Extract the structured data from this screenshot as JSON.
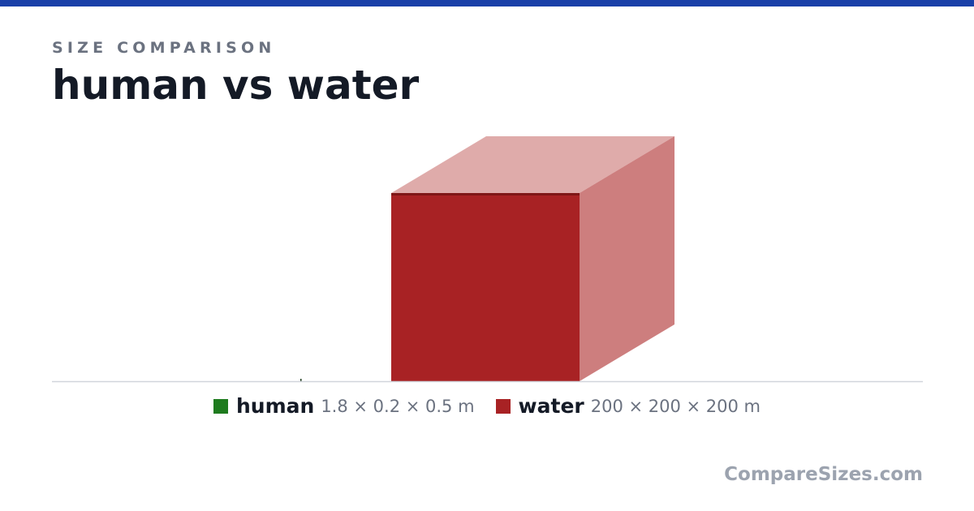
{
  "header": {
    "kicker": "SIZE COMPARISON",
    "title": "human vs water"
  },
  "items": [
    {
      "name": "human",
      "dimensions": "1.8 × 0.2 × 0.5 m",
      "color": "#1e7b1e"
    },
    {
      "name": "water",
      "dimensions": "200 × 200 × 200 m",
      "color": "#a82224"
    }
  ],
  "footer": {
    "brand": "CompareSizes.com"
  }
}
